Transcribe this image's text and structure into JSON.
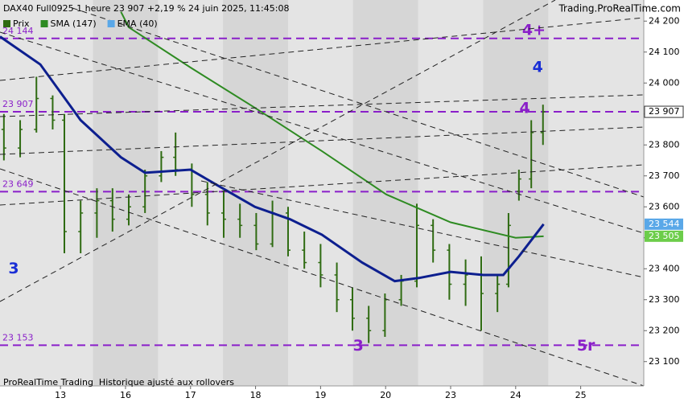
{
  "header": {
    "title": "DAX40 Full0925 1 heure 23 907 +2,19 % 24 juin 2025, 11:45:08",
    "site": "Trading.ProRealTime.com"
  },
  "footer": "ProRealTime Trading  Historique ajusté aux rollovers",
  "chart_data": {
    "type": "ohlc",
    "xlim": [
      -0.93,
      8.97
    ],
    "xticks": [
      {
        "value": 0,
        "label": "13"
      },
      {
        "value": 1,
        "label": "16"
      },
      {
        "value": 2,
        "label": "17"
      },
      {
        "value": 3,
        "label": "18"
      },
      {
        "value": 4,
        "label": "19"
      },
      {
        "value": 5,
        "label": "20"
      },
      {
        "value": 6,
        "label": "23"
      },
      {
        "value": 7,
        "label": "24"
      },
      {
        "value": 8,
        "label": "25"
      }
    ],
    "ylim": [
      23050,
      24250
    ],
    "yticks": [
      {
        "value": 23100,
        "label": "23 100"
      },
      {
        "value": 23200,
        "label": "23 200"
      },
      {
        "value": 23300,
        "label": "23 300"
      },
      {
        "value": 23400,
        "label": "23 400"
      },
      {
        "value": 23500,
        "label": "23 500"
      },
      {
        "value": 23600,
        "label": "23 600"
      },
      {
        "value": 23700,
        "label": "23 700"
      },
      {
        "value": 23800,
        "label": "23 800"
      },
      {
        "value": 23900,
        "label": "23 900"
      },
      {
        "value": 24000,
        "label": "24 000"
      },
      {
        "value": 24100,
        "label": "24 100"
      },
      {
        "value": 24200,
        "label": "24 200"
      }
    ],
    "price": {
      "name": "Prix",
      "color": "#2f6b12",
      "x": [
        -0.87,
        -0.62,
        -0.37,
        -0.12,
        0.06,
        0.31,
        0.56,
        0.8,
        1.05,
        1.3,
        1.55,
        1.77,
        2.02,
        2.26,
        2.51,
        2.76,
        3.01,
        3.26,
        3.5,
        3.75,
        4.0,
        4.25,
        4.49,
        4.74,
        4.99,
        5.24,
        5.48,
        5.73,
        5.98,
        6.23,
        6.47,
        6.72,
        6.89,
        7.05,
        7.24,
        7.42
      ],
      "ohlc": [
        [
          23850,
          23900,
          23750,
          23790
        ],
        [
          23790,
          23880,
          23760,
          23850
        ],
        [
          23850,
          24020,
          23840,
          23950
        ],
        [
          23950,
          23960,
          23850,
          23880
        ],
        [
          23880,
          23900,
          23450,
          23520
        ],
        [
          23520,
          23620,
          23450,
          23580
        ],
        [
          23580,
          23660,
          23500,
          23620
        ],
        [
          23620,
          23660,
          23520,
          23560
        ],
        [
          23560,
          23640,
          23540,
          23600
        ],
        [
          23600,
          23720,
          23580,
          23700
        ],
        [
          23700,
          23780,
          23680,
          23760
        ],
        [
          23760,
          23840,
          23700,
          23720
        ],
        [
          23720,
          23740,
          23600,
          23640
        ],
        [
          23640,
          23680,
          23540,
          23580
        ],
        [
          23580,
          23650,
          23500,
          23560
        ],
        [
          23560,
          23610,
          23500,
          23540
        ],
        [
          23540,
          23580,
          23460,
          23480
        ],
        [
          23480,
          23620,
          23470,
          23580
        ],
        [
          23580,
          23600,
          23440,
          23460
        ],
        [
          23460,
          23520,
          23400,
          23420
        ],
        [
          23420,
          23480,
          23340,
          23380
        ],
        [
          23380,
          23420,
          23260,
          23300
        ],
        [
          23300,
          23340,
          23200,
          23240
        ],
        [
          23240,
          23280,
          23160,
          23200
        ],
        [
          23200,
          23320,
          23180,
          23300
        ],
        [
          23300,
          23380,
          23280,
          23360
        ],
        [
          23360,
          23610,
          23340,
          23540
        ],
        [
          23540,
          23560,
          23420,
          23460
        ],
        [
          23460,
          23480,
          23300,
          23350
        ],
        [
          23350,
          23430,
          23280,
          23380
        ],
        [
          23380,
          23440,
          23200,
          23320
        ],
        [
          23320,
          23380,
          23260,
          23350
        ],
        [
          23350,
          23580,
          23340,
          23540
        ],
        [
          23650,
          23720,
          23620,
          23690
        ],
        [
          23690,
          23880,
          23660,
          23840
        ],
        [
          23840,
          23930,
          23800,
          23907
        ]
      ]
    },
    "series": [
      {
        "name": "SMA (147)",
        "color": "#2e8b22",
        "x": [
          0.93,
          1.05,
          2.0,
          2.99,
          4.02,
          5.01,
          6.0,
          7.0,
          7.43
        ],
        "values": [
          24230,
          24180,
          24050,
          23920,
          23780,
          23640,
          23550,
          23500,
          23505
        ]
      },
      {
        "name": "EMA (40)",
        "color": "#0d1f8f",
        "x": [
          -0.93,
          -0.31,
          0.31,
          0.93,
          1.3,
          2.0,
          2.41,
          2.99,
          3.53,
          4.02,
          4.64,
          5.14,
          5.51,
          6.0,
          6.5,
          6.81,
          7.05,
          7.43
        ],
        "values": [
          24150,
          24060,
          23880,
          23760,
          23710,
          23720,
          23670,
          23600,
          23560,
          23510,
          23420,
          23360,
          23370,
          23390,
          23380,
          23380,
          23440,
          23544
        ]
      }
    ],
    "levels": [
      {
        "value": 24144,
        "label": "24 144"
      },
      {
        "value": 23907,
        "label": "23 907"
      },
      {
        "value": 23649,
        "label": "23 649"
      },
      {
        "value": 23153,
        "label": "23 153"
      }
    ],
    "level_color": "#8a1fc9",
    "badges": [
      {
        "value": 23907,
        "label": "23 907",
        "color": "#ffffff"
      },
      {
        "value": 23544,
        "label": "23 544",
        "color": "#5aa8e8"
      },
      {
        "value": 23505,
        "label": "23 505",
        "color": "#6ccd4a"
      }
    ],
    "annotations": [
      {
        "text": "4+",
        "x": 7.28,
        "y": 24170,
        "color": "#8a1fc9"
      },
      {
        "text": "4",
        "x": 7.34,
        "y": 24050,
        "color": "#1a2fd6"
      },
      {
        "text": "4",
        "x": 7.14,
        "y": 23918,
        "color": "#8a1fc9"
      },
      {
        "text": "3",
        "x": -0.72,
        "y": 23400,
        "color": "#1a2fd6"
      },
      {
        "text": "3",
        "x": 4.58,
        "y": 23150,
        "color": "#8a1fc9"
      },
      {
        "text": "5r",
        "x": 8.08,
        "y": 23150,
        "color": "#8a1fc9"
      }
    ]
  }
}
